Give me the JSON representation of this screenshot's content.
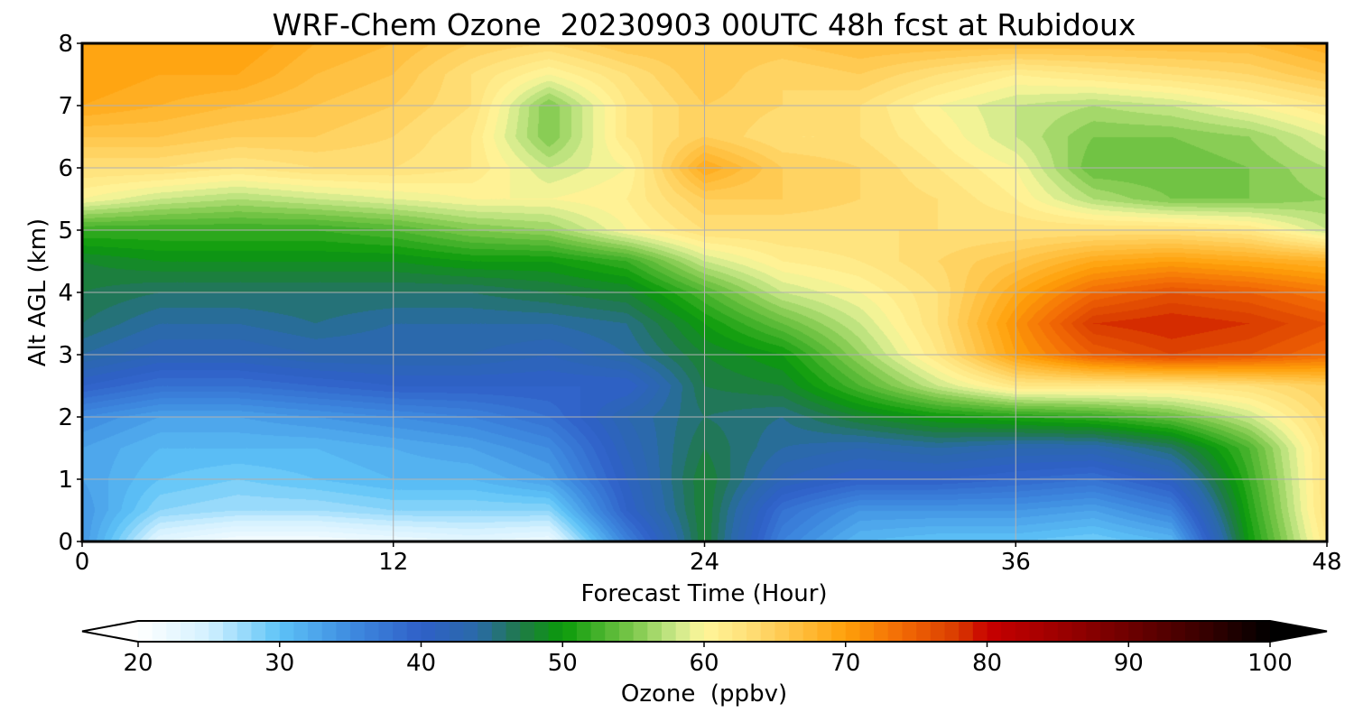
{
  "chart_data": {
    "type": "heatmap",
    "title": "WRF-Chem Ozone  20230903 00UTC 48h fcst at Rubidoux",
    "xlabel": "Forecast Time (Hour)",
    "ylabel": "Alt AGL (km)",
    "xlim": [
      0,
      48
    ],
    "ylim": [
      0,
      8
    ],
    "x_ticks": [
      0,
      12,
      24,
      36,
      48
    ],
    "y_ticks": [
      0,
      1,
      2,
      3,
      4,
      5,
      6,
      7,
      8
    ],
    "grid": true,
    "x": [
      0,
      3,
      6,
      9,
      12,
      15,
      18,
      21,
      24,
      27,
      30,
      33,
      36,
      39,
      42,
      45,
      48
    ],
    "y": [
      0,
      0.5,
      1,
      1.5,
      2,
      2.5,
      3,
      3.5,
      4,
      4.5,
      5,
      5.5,
      6,
      6.5,
      7,
      7.5,
      8
    ],
    "z": [
      [
        34,
        23,
        21,
        21,
        22,
        23,
        22,
        36,
        48,
        36,
        31,
        30,
        30,
        29,
        31,
        50,
        62
      ],
      [
        34,
        28,
        27,
        27,
        28,
        28,
        28,
        40,
        48,
        38,
        34,
        34,
        34,
        33,
        36,
        51,
        63
      ],
      [
        33,
        30,
        29,
        30,
        31,
        31,
        33,
        41,
        48,
        42,
        40,
        40,
        39,
        38,
        41,
        52,
        63
      ],
      [
        33,
        31,
        31,
        31,
        32,
        33,
        35,
        42,
        47,
        44,
        43,
        44,
        43,
        43,
        46,
        53,
        63
      ],
      [
        35,
        33,
        33,
        34,
        35,
        36,
        38,
        43,
        46,
        45,
        48,
        50,
        51,
        52,
        54,
        58,
        64
      ],
      [
        40,
        38,
        38,
        39,
        40,
        40,
        40,
        40,
        47,
        48,
        53,
        58,
        62,
        62,
        62,
        63,
        65
      ],
      [
        44,
        42,
        42,
        43,
        43,
        43,
        42,
        44,
        48,
        50,
        56,
        62,
        70,
        75,
        77,
        76,
        74
      ],
      [
        46,
        44,
        44,
        45,
        44,
        44,
        44,
        45,
        50,
        54,
        58,
        63,
        71,
        78,
        79,
        78,
        76
      ],
      [
        47,
        46,
        46,
        46,
        46,
        46,
        47,
        48,
        53,
        58,
        60,
        63,
        69,
        74,
        76,
        75,
        73
      ],
      [
        48,
        49,
        49,
        49,
        49,
        50,
        50,
        52,
        58,
        61,
        62,
        64,
        66,
        69,
        70,
        69,
        68
      ],
      [
        52,
        52,
        52,
        52,
        53,
        55,
        56,
        60,
        63,
        63,
        63,
        63,
        63,
        63,
        63,
        62,
        58
      ],
      [
        60,
        58,
        57,
        58,
        59,
        60,
        60,
        61,
        65,
        65,
        64,
        63,
        61,
        57,
        55,
        55,
        56
      ],
      [
        63,
        63,
        62,
        63,
        63,
        62,
        58,
        60,
        69,
        65,
        64,
        62,
        60,
        54,
        54,
        55,
        57
      ],
      [
        66,
        66,
        65,
        65,
        64,
        62,
        55,
        62,
        65,
        63,
        63,
        61,
        58,
        55,
        55,
        56,
        59
      ],
      [
        69,
        68,
        67,
        66,
        65,
        63,
        55,
        62,
        65,
        64,
        63,
        60,
        58,
        57,
        58,
        60,
        62
      ],
      [
        70,
        69,
        69,
        67,
        66,
        63,
        60,
        63,
        66,
        64,
        65,
        63,
        61,
        62,
        63,
        64,
        66
      ],
      [
        70,
        70,
        70,
        68,
        67,
        65,
        64,
        66,
        66,
        66,
        67,
        67,
        67,
        67,
        67,
        67,
        69
      ]
    ],
    "colorbar": {
      "label": "Ozone  (ppbv)",
      "min": 20,
      "max": 100,
      "ticks": [
        20,
        30,
        40,
        50,
        60,
        70,
        80,
        90,
        100
      ],
      "extend": "both",
      "color_stops": [
        {
          "v": 20,
          "c": "#ffffff"
        },
        {
          "v": 25,
          "c": "#d2f0ff"
        },
        {
          "v": 30,
          "c": "#5dc3f7"
        },
        {
          "v": 35,
          "c": "#3e8be0"
        },
        {
          "v": 40,
          "c": "#2f60c8"
        },
        {
          "v": 44,
          "c": "#2a6aa8"
        },
        {
          "v": 47,
          "c": "#1f7a48"
        },
        {
          "v": 50,
          "c": "#0a9a0a"
        },
        {
          "v": 55,
          "c": "#7cc74a"
        },
        {
          "v": 58,
          "c": "#cbe98a"
        },
        {
          "v": 60,
          "c": "#fff69a"
        },
        {
          "v": 63,
          "c": "#ffe07a"
        },
        {
          "v": 66,
          "c": "#ffc64a"
        },
        {
          "v": 70,
          "c": "#ffa00a"
        },
        {
          "v": 74,
          "c": "#f26a05"
        },
        {
          "v": 78,
          "c": "#d93a00"
        },
        {
          "v": 80,
          "c": "#c80000"
        },
        {
          "v": 85,
          "c": "#9e0000"
        },
        {
          "v": 90,
          "c": "#6e0000"
        },
        {
          "v": 95,
          "c": "#3c0000"
        },
        {
          "v": 100,
          "c": "#000000"
        }
      ]
    }
  }
}
